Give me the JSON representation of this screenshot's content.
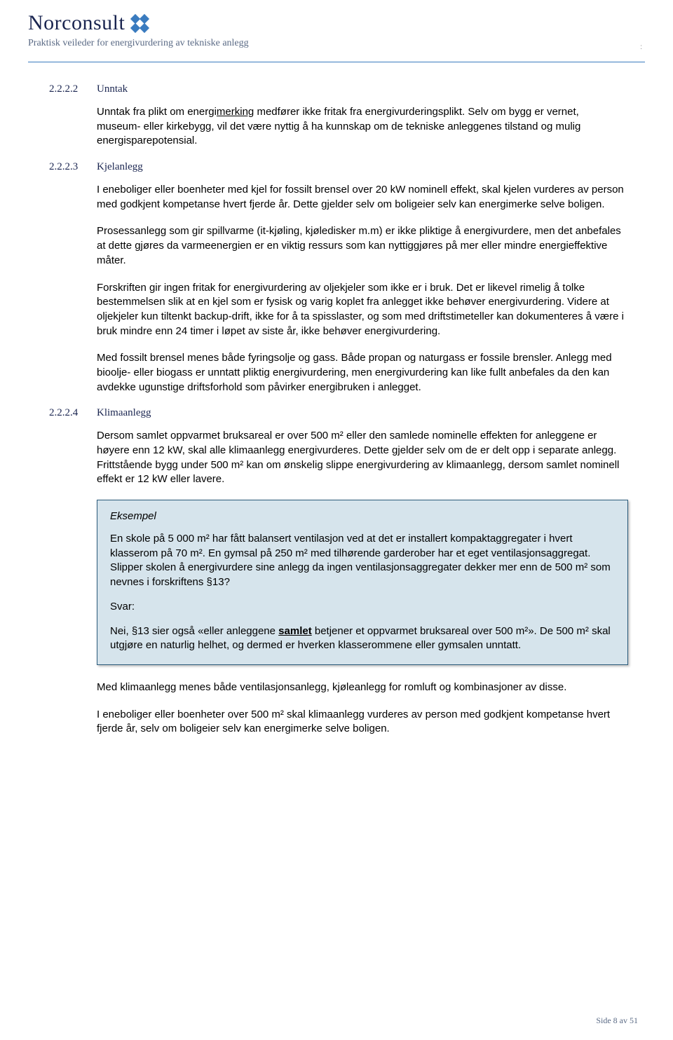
{
  "header": {
    "logo_text": "Norconsult",
    "subtitle": "Praktisk veileder for energivurdering av tekniske anlegg"
  },
  "sections": [
    {
      "num": "2.2.2.2",
      "title": "Unntak",
      "paras": [
        "Unntak fra plikt om energi<u>merking</u> medfører ikke fritak fra energivurderingsplikt. Selv om bygg er vernet, museum- eller kirkebygg, vil det være nyttig å ha kunnskap om de tekniske anleggenes tilstand og mulig energisparepotensial."
      ]
    },
    {
      "num": "2.2.2.3",
      "title": "Kjelanlegg",
      "paras": [
        "I eneboliger eller boenheter med kjel for fossilt brensel over 20 kW nominell effekt, skal kjelen vurderes av person med godkjent kompetanse hvert fjerde år. Dette gjelder selv om boligeier selv kan energimerke selve boligen.",
        "Prosessanlegg som gir spillvarme (it-kjøling, kjøledisker m.m) er ikke pliktige å energivurdere, men det anbefales at dette gjøres da varmeenergien er en viktig ressurs som kan nyttiggjøres på mer eller mindre energieffektive måter.",
        "Forskriften gir ingen fritak for energivurdering av oljekjeler som ikke er i bruk. Det er likevel rimelig å tolke bestemmelsen slik at en kjel som er fysisk og varig koplet fra anlegget ikke behøver energivurdering. Videre at oljekjeler kun tiltenkt backup-drift, ikke for å ta spisslaster, og som med driftstimeteller kan dokumenteres å være i bruk mindre enn 24 timer i løpet av siste år, ikke behøver energivurdering.",
        "Med fossilt brensel menes både fyringsolje og gass. Både propan og naturgass er fossile brensler. Anlegg med bioolje- eller biogass er unntatt pliktig energivurdering, men energivurdering kan like fullt anbefales da den kan avdekke ugunstige driftsforhold som påvirker energibruken i anlegget."
      ]
    },
    {
      "num": "2.2.2.4",
      "title": "Klimaanlegg",
      "paras": [
        "Dersom samlet oppvarmet bruksareal er over 500 m² eller den samlede nominelle effekten for anleggene er høyere enn 12 kW, skal alle klimaanlegg energivurderes. Dette gjelder selv om de er delt opp i separate anlegg. Frittstående bygg under 500 m² kan om ønskelig slippe energivurdering av klimaanlegg, dersom samlet nominell effekt er 12 kW eller lavere."
      ],
      "example": {
        "head": "Eksempel",
        "q": "En skole på 5 000 m² har fått balansert ventilasjon ved at det er installert kompaktaggregater i hvert klasserom på 70 m². En gymsal på 250 m² med tilhørende garderober har et eget ventilasjonsaggregat. Slipper skolen å energivurdere sine anlegg da ingen ventilasjonsaggregater dekker mer enn de 500 m² som nevnes i forskriftens §13?",
        "svar_label": "Svar:",
        "a": "Nei, §13 sier også «eller anleggene <bu>samlet</bu> betjener et oppvarmet bruksareal over 500 m²». De 500 m² skal utgjøre en naturlig helhet, og dermed er hverken klasserommene eller gymsalen unntatt."
      },
      "after_example": [
        "Med klimaanlegg menes både ventilasjonsanlegg, kjøleanlegg for romluft og kombinasjoner av disse.",
        "I eneboliger eller boenheter over 500 m² skal klimaanlegg vurderes av person med godkjent kompetanse hvert fjerde år, selv om boligeier selv kan energimerke selve boligen."
      ]
    }
  ],
  "footer": "Side 8 av 51",
  "colors": {
    "brand_blue": "#3a7bbf",
    "dark_navy": "#1a2550",
    "muted_blue": "#5a6a85",
    "box_bg": "#d6e4ec",
    "box_border": "#2a5a7a"
  }
}
